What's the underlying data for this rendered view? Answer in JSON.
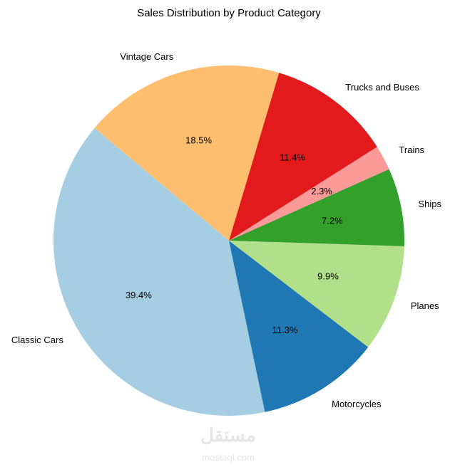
{
  "chart_data": {
    "type": "pie",
    "title": "Sales Distribution by Product Category",
    "start_angle_deg": 140,
    "counterclockwise": true,
    "slices": [
      {
        "label": "Classic Cars",
        "value": 39.4,
        "pct_label": "39.4%",
        "color": "#a6cee3"
      },
      {
        "label": "Motorcycles",
        "value": 11.3,
        "pct_label": "11.3%",
        "color": "#1f78b4"
      },
      {
        "label": "Planes",
        "value": 9.9,
        "pct_label": "9.9%",
        "color": "#b2df8a"
      },
      {
        "label": "Ships",
        "value": 7.2,
        "pct_label": "7.2%",
        "color": "#33a02c"
      },
      {
        "label": "Trains",
        "value": 2.3,
        "pct_label": "2.3%",
        "color": "#fb9a99"
      },
      {
        "label": "Trucks and Buses",
        "value": 11.4,
        "pct_label": "11.4%",
        "color": "#e31a1c"
      },
      {
        "label": "Vintage Cars",
        "value": 18.5,
        "pct_label": "18.5%",
        "color": "#fdbf6f"
      }
    ]
  },
  "watermark": {
    "arabic": "مستقل",
    "latin": "mostaql.com"
  }
}
